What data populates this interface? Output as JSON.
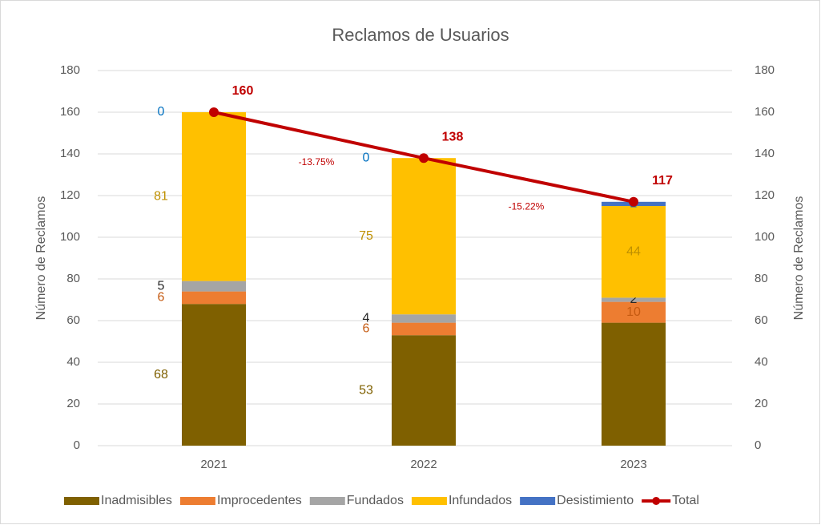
{
  "chart_data": {
    "type": "bar",
    "stacked": true,
    "title": "Reclamos de Usuarios",
    "y_label": "Número de Reclamos",
    "y2_label": "Número de Reclamos",
    "categories": [
      "2021",
      "2022",
      "2023"
    ],
    "series": [
      {
        "name": "Inadmisibles",
        "color": "#7f6000",
        "label_color": "#7f6000",
        "values": [
          68,
          53,
          59
        ],
        "value_labels": [
          "68",
          "53",
          null
        ]
      },
      {
        "name": "Improcedentes",
        "color": "#ed7d31",
        "label_color": "#c55a11",
        "values": [
          6,
          6,
          10
        ]
      },
      {
        "name": "Fundados",
        "color": "#a5a5a5",
        "label_color": "#262626",
        "values": [
          5,
          4,
          2
        ]
      },
      {
        "name": "Infundados",
        "color": "#ffc000",
        "label_color": "#bf9000",
        "values": [
          81,
          75,
          44
        ]
      },
      {
        "name": "Desistimiento",
        "color": "#4472c4",
        "label_color": "#0070c0",
        "values": [
          0,
          0,
          2
        ]
      },
      {
        "name": "Total",
        "type": "line",
        "axis": "y2",
        "color": "#c00000",
        "values": [
          160,
          138,
          117
        ]
      }
    ],
    "annotations": [
      "-13.75%",
      "-15.22%"
    ],
    "ylim": [
      0,
      180
    ],
    "yticks": [
      0,
      20,
      40,
      60,
      80,
      100,
      120,
      140,
      160,
      180
    ],
    "y2lim": [
      0,
      180
    ],
    "y2ticks": [
      0,
      20,
      40,
      60,
      80,
      100,
      120,
      140,
      160,
      180
    ],
    "grid": true,
    "legend": "bottom"
  }
}
